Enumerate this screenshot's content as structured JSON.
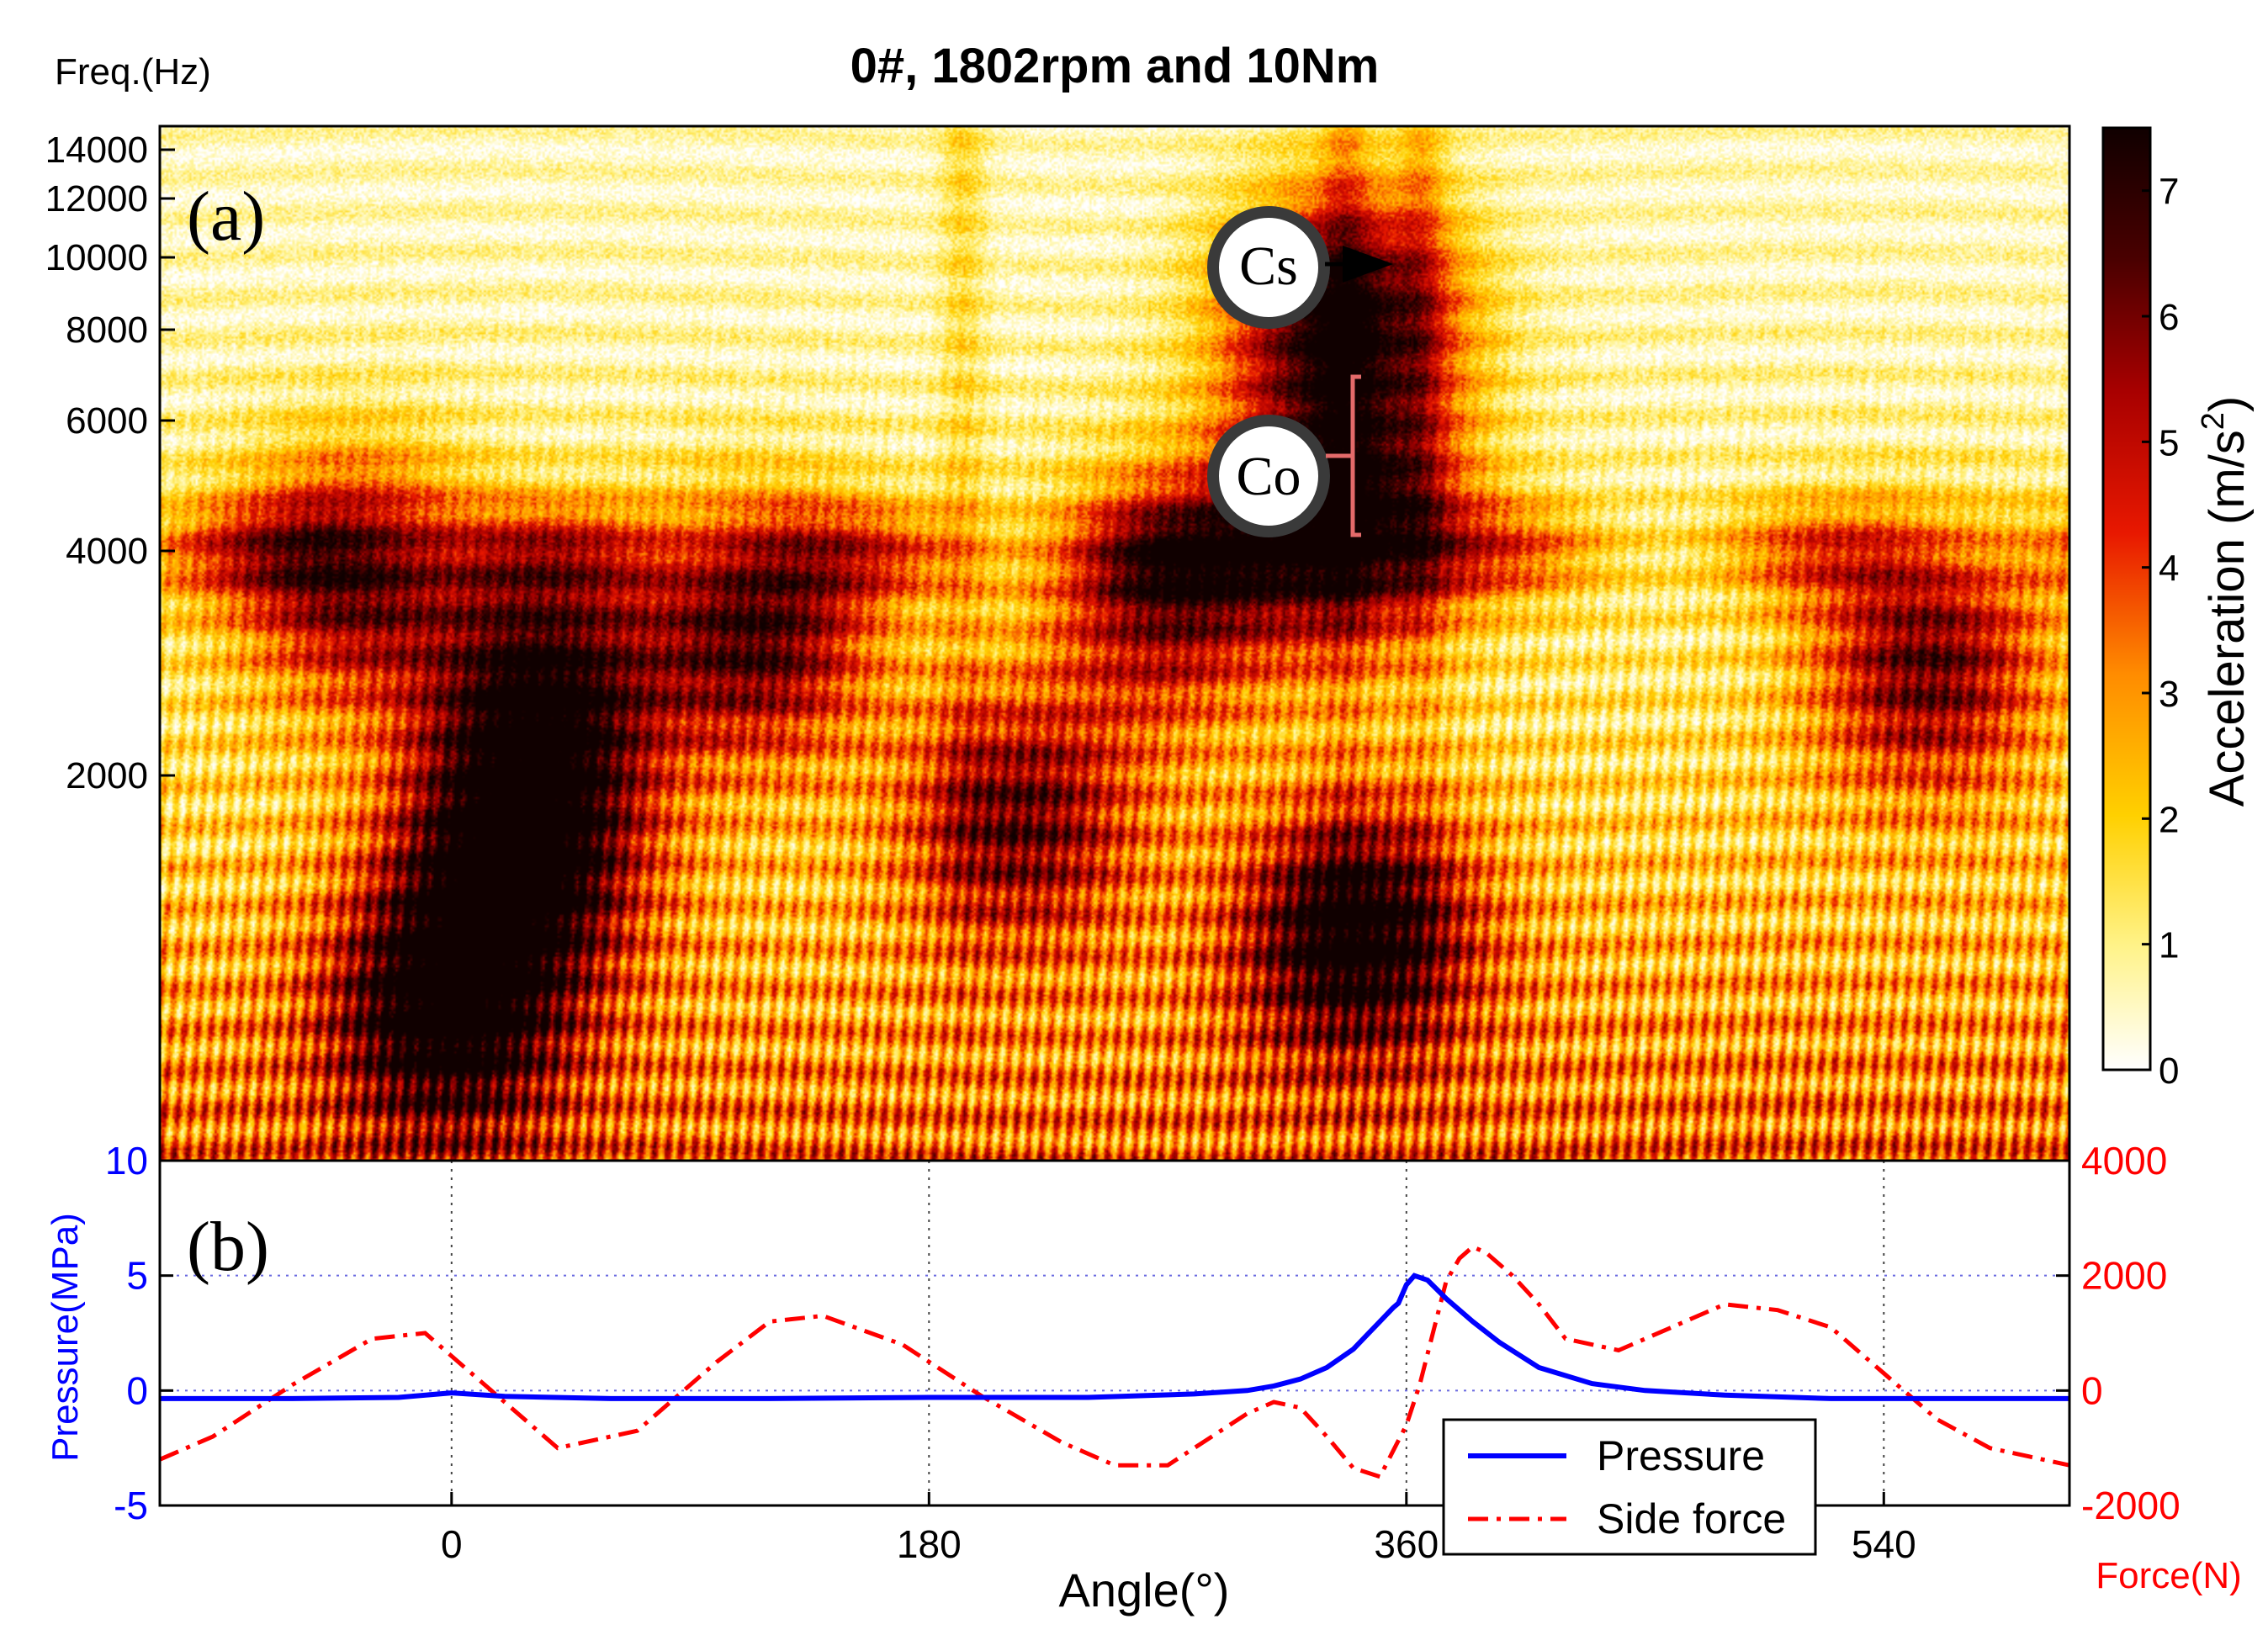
{
  "chart_data": [
    {
      "panel": "(a)",
      "type": "heatmap",
      "title": "0#, 1802rpm and 10Nm",
      "ylabel": "Freq.(Hz)",
      "yticks": [
        14000,
        12000,
        10000,
        8000,
        6000,
        4000,
        2000
      ],
      "xlim": [
        -120,
        680
      ],
      "colorbar": {
        "label": "Acceleration (m/s²)",
        "label_main": "Acceleration (m/s",
        "label_sup": "2",
        "label_end": ")",
        "range": [
          0,
          7.5
        ],
        "ticks": [
          0,
          1,
          2,
          3,
          4,
          5,
          6,
          7
        ],
        "colormap": [
          "#ffffff",
          "#fff38a",
          "#ffd000",
          "#ff8c00",
          "#e81800",
          "#a80000",
          "#4a0000",
          "#100000"
        ]
      },
      "hot_spots": [
        {
          "angle": 30,
          "freq": 1600,
          "level": 7.5
        },
        {
          "angle": 0,
          "freq": 800,
          "level": 7.0
        },
        {
          "angle": 40,
          "freq": 2800,
          "level": 6.5
        },
        {
          "angle": 375,
          "freq": 4500,
          "level": 7.5
        },
        {
          "angle": 375,
          "freq": 8500,
          "level": 7.5
        },
        {
          "angle": 380,
          "freq": 1200,
          "level": 7.0
        },
        {
          "angle": 130,
          "freq": 3300,
          "level": 6.0
        },
        {
          "angle": 240,
          "freq": 1800,
          "level": 5.0
        },
        {
          "angle": 620,
          "freq": 3000,
          "level": 5.5
        },
        {
          "angle": -40,
          "freq": 3800,
          "level": 5.5
        },
        {
          "angle": 300,
          "freq": 3600,
          "level": 5.0
        }
      ],
      "annotations": [
        {
          "label": "(a)"
        },
        {
          "label": "Cs",
          "note": "arrow pointing to high-frequency peak near 10000 Hz"
        },
        {
          "label": "Co",
          "note": "bracket spanning about 4000-6500 Hz"
        }
      ]
    },
    {
      "panel": "(b)",
      "type": "line",
      "xlabel": "Angle(°)",
      "xticks": [
        0,
        180,
        360,
        540
      ],
      "xlim": [
        -110,
        610
      ],
      "ylabel_left": "Pressure(MPa)",
      "ylim_left": [
        -5,
        10
      ],
      "yticks_left": [
        10,
        5,
        0,
        -5
      ],
      "ylabel_right": "Force(N)",
      "ylim_right": [
        -2000,
        4000
      ],
      "yticks_right": [
        4000,
        2000,
        0,
        -2000
      ],
      "legend": {
        "location": "bottom-right",
        "entries": [
          "Pressure",
          "Side force"
        ]
      },
      "series": [
        {
          "name": "Pressure",
          "axis": "left",
          "color": "#0000ff",
          "x": [
            -110,
            -60,
            -20,
            0,
            20,
            60,
            120,
            180,
            240,
            280,
            300,
            310,
            320,
            330,
            340,
            345,
            350,
            355,
            357,
            360,
            363,
            368,
            375,
            385,
            395,
            410,
            430,
            450,
            480,
            520,
            560,
            610
          ],
          "y": [
            -0.35,
            -0.35,
            -0.3,
            -0.1,
            -0.25,
            -0.35,
            -0.35,
            -0.3,
            -0.3,
            -0.15,
            0.0,
            0.2,
            0.5,
            1.0,
            1.8,
            2.4,
            3.0,
            3.6,
            3.8,
            4.6,
            5.0,
            4.8,
            4.0,
            3.0,
            2.1,
            1.0,
            0.3,
            0.0,
            -0.2,
            -0.35,
            -0.35,
            -0.35
          ]
        },
        {
          "name": "Side force",
          "axis": "right",
          "color": "#ff0000",
          "x": [
            -110,
            -90,
            -60,
            -30,
            -10,
            10,
            40,
            70,
            100,
            120,
            140,
            170,
            200,
            230,
            250,
            270,
            290,
            300,
            310,
            320,
            330,
            340,
            350,
            360,
            365,
            370,
            375,
            380,
            385,
            390,
            400,
            410,
            420,
            440,
            460,
            480,
            500,
            520,
            540,
            560,
            580,
            610
          ],
          "y": [
            -1200,
            -800,
            100,
            900,
            1000,
            200,
            -1000,
            -700,
            500,
            1200,
            1300,
            800,
            -100,
            -900,
            -1300,
            -1300,
            -700,
            -400,
            -200,
            -300,
            -800,
            -1350,
            -1500,
            -600,
            100,
            1000,
            1900,
            2300,
            2500,
            2400,
            2000,
            1500,
            900,
            700,
            1100,
            1500,
            1400,
            1100,
            300,
            -500,
            -1000,
            -1300
          ]
        }
      ]
    }
  ],
  "heat_seed": 7
}
